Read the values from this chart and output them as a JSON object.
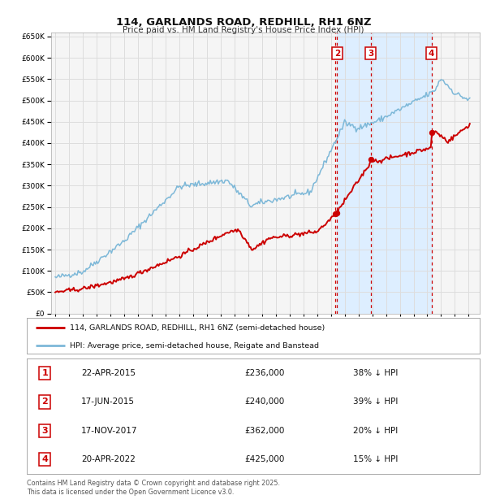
{
  "title": "114, GARLANDS ROAD, REDHILL, RH1 6NZ",
  "subtitle": "Price paid vs. HM Land Registry's House Price Index (HPI)",
  "legend_line1": "114, GARLANDS ROAD, REDHILL, RH1 6NZ (semi-detached house)",
  "legend_line2": "HPI: Average price, semi-detached house, Reigate and Banstead",
  "footnote1": "Contains HM Land Registry data © Crown copyright and database right 2025.",
  "footnote2": "This data is licensed under the Open Government Licence v3.0.",
  "hpi_color": "#7db8d8",
  "price_color": "#cc0000",
  "background_color": "#ffffff",
  "plot_bg_color": "#f5f5f5",
  "grid_color": "#dddddd",
  "highlight_color": "#ddeeff",
  "ylim": [
    0,
    660000
  ],
  "yticks": [
    0,
    50000,
    100000,
    150000,
    200000,
    250000,
    300000,
    350000,
    400000,
    450000,
    500000,
    550000,
    600000,
    650000
  ],
  "xlim_start": 1994.7,
  "xlim_end": 2025.8,
  "sale_events": [
    {
      "label": "1",
      "date_num": 2015.29,
      "price": 236000
    },
    {
      "label": "2",
      "date_num": 2015.45,
      "price": 240000
    },
    {
      "label": "3",
      "date_num": 2017.88,
      "price": 362000
    },
    {
      "label": "4",
      "date_num": 2022.3,
      "price": 425000
    }
  ],
  "highlight_region": {
    "x_start": 2015.45,
    "x_end": 2022.3
  },
  "table_rows": [
    {
      "num": "1",
      "date": "22-APR-2015",
      "price": "£236,000",
      "pct": "38% ↓ HPI"
    },
    {
      "num": "2",
      "date": "17-JUN-2015",
      "price": "£240,000",
      "pct": "39% ↓ HPI"
    },
    {
      "num": "3",
      "date": "17-NOV-2017",
      "price": "£362,000",
      "pct": "20% ↓ HPI"
    },
    {
      "num": "4",
      "date": "20-APR-2022",
      "price": "£425,000",
      "pct": "15% ↓ HPI"
    }
  ]
}
